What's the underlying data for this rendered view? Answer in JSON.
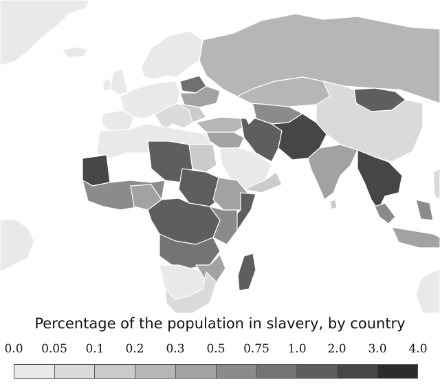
{
  "legend": {
    "title": "Percentage of the population in slavery, by country",
    "ticks": [
      "0.0",
      "0.05",
      "0.1",
      "0.2",
      "0.3",
      "0.5",
      "0.75",
      "1.0",
      "2.0",
      "3.0",
      "4.0"
    ],
    "colors": [
      "#e9e9e9",
      "#dadada",
      "#cbcbcb",
      "#b6b6b6",
      "#a2a2a2",
      "#8b8b8b",
      "#747474",
      "#5e5e5e",
      "#464646",
      "#2c2c2c"
    ]
  },
  "map": {
    "land_colors": {
      "lowest": "#e9e9e9",
      "low": "#dadada",
      "lower_mid": "#cbcbcb",
      "mid": "#b6b6b6",
      "upper_mid": "#a2a2a2",
      "high": "#8b8b8b",
      "very_high": "#747474",
      "severe": "#5e5e5e",
      "extreme": "#464646"
    },
    "border_color": "#ffffff"
  }
}
